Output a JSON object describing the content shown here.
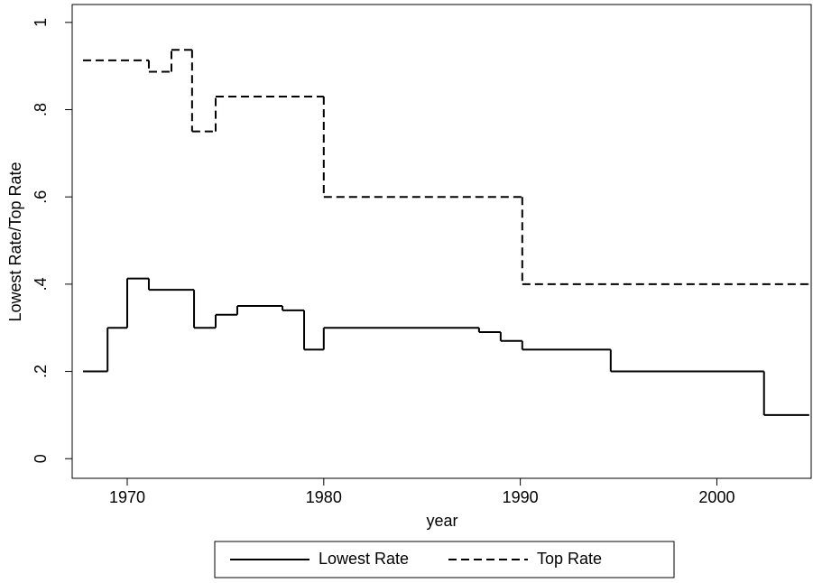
{
  "chart_data": {
    "type": "line",
    "steps": "post",
    "xlabel": "year",
    "ylabel": "Lowest Rate/Top Rate",
    "xlim": [
      1967.2,
      2004.8
    ],
    "xticks": [
      1970,
      1980,
      1990,
      2000
    ],
    "ylim": [
      -0.045,
      1.041
    ],
    "yticks": [
      0,
      {
        "value": 0.2,
        "label": ".2"
      },
      {
        "value": 0.4,
        "label": ".4"
      },
      {
        "value": 0.6,
        "label": ".6"
      },
      {
        "value": 0.8,
        "label": ".8"
      },
      1
    ],
    "series": [
      {
        "name": "Lowest Rate",
        "color": "#000000",
        "dash": "solid",
        "x": [
          1967.75,
          1969.0,
          1970.0,
          1971.1,
          1973.4,
          1974.5,
          1975.6,
          1977.9,
          1979.0,
          1980.0,
          1987.9,
          1989.0,
          1990.1,
          1994.6,
          2002.4,
          2004.7
        ],
        "values": [
          0.2,
          0.3,
          0.413,
          0.387,
          0.3,
          0.33,
          0.35,
          0.34,
          0.25,
          0.3,
          0.29,
          0.27,
          0.25,
          0.2,
          0.1,
          0.1
        ]
      },
      {
        "name": "Top Rate",
        "color": "#000000",
        "dash": "dashed",
        "x": [
          1967.75,
          1971.1,
          1972.25,
          1973.3,
          1974.5,
          1980.0,
          1990.1,
          2004.7
        ],
        "values": [
          0.913,
          0.887,
          0.937,
          0.75,
          0.83,
          0.6,
          0.4,
          0.4
        ]
      }
    ]
  }
}
